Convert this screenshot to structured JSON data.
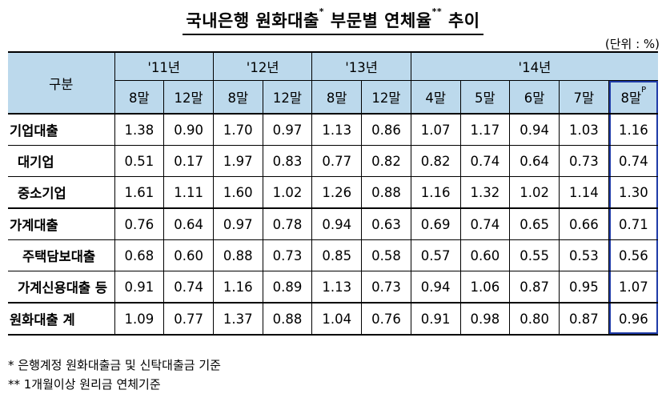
{
  "title": "국내은행 원화대출",
  "title_mark1": "*",
  "title_rest": "부문별 연체율",
  "title_mark2": "**",
  "title_end": "추이",
  "unit": "(단위 : %)",
  "table": {
    "row_header": "구분",
    "years": [
      "'11년",
      "'12년",
      "'13년",
      "'14년"
    ],
    "months": [
      "8말",
      "12말",
      "8말",
      "12말",
      "8말",
      "12말",
      "4말",
      "5말",
      "6말",
      "7말",
      "8말"
    ],
    "last_month_mark": "P",
    "rows": [
      {
        "label": "기업대출",
        "values": [
          "1.38",
          "0.90",
          "1.70",
          "0.97",
          "1.13",
          "0.86",
          "1.07",
          "1.17",
          "0.94",
          "1.03",
          "1.16"
        ]
      },
      {
        "label": "대기업",
        "values": [
          "0.51",
          "0.17",
          "1.97",
          "0.83",
          "0.77",
          "0.82",
          "0.82",
          "0.74",
          "0.64",
          "0.73",
          "0.74"
        ]
      },
      {
        "label": "중소기업",
        "values": [
          "1.61",
          "1.11",
          "1.60",
          "1.02",
          "1.26",
          "0.88",
          "1.16",
          "1.32",
          "1.02",
          "1.14",
          "1.30"
        ]
      },
      {
        "label": "가계대출",
        "values": [
          "0.76",
          "0.64",
          "0.97",
          "0.78",
          "0.94",
          "0.63",
          "0.69",
          "0.74",
          "0.65",
          "0.66",
          "0.71"
        ]
      },
      {
        "label": "주택담보대출",
        "values": [
          "0.68",
          "0.60",
          "0.88",
          "0.73",
          "0.85",
          "0.58",
          "0.57",
          "0.60",
          "0.55",
          "0.53",
          "0.56"
        ]
      },
      {
        "label": "가계신용대출 등",
        "values": [
          "0.91",
          "0.74",
          "1.16",
          "0.89",
          "1.13",
          "0.73",
          "0.94",
          "1.06",
          "0.87",
          "0.95",
          "1.07"
        ]
      },
      {
        "label": "원화대출 계",
        "values": [
          "1.09",
          "0.77",
          "1.37",
          "0.88",
          "1.04",
          "0.76",
          "0.91",
          "0.98",
          "0.80",
          "0.87",
          "0.96"
        ]
      }
    ]
  },
  "notes": [
    "*  은행계정 원화대출금 및 신탁대출금 기준",
    "**  1개월이상 원리금 연체기준"
  ]
}
